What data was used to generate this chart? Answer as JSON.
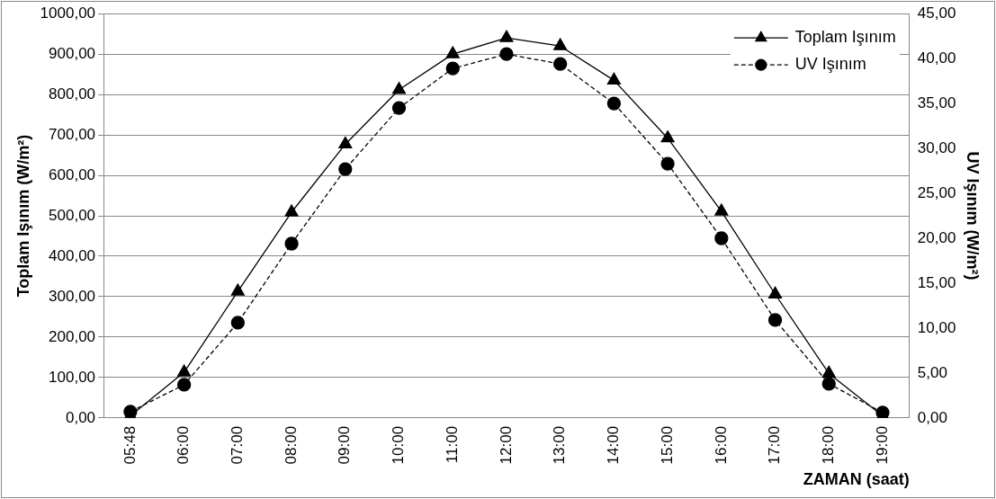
{
  "chart_data": {
    "type": "line",
    "xlabel": "ZAMAN (saat)",
    "ylabel": "Toplam Işınım (W/m²)",
    "y2label": "UV Işınım (W/m²)",
    "categories": [
      "05:48",
      "06:00",
      "07:00",
      "08:00",
      "09:00",
      "10:00",
      "11:00",
      "12:00",
      "13:00",
      "14:00",
      "15:00",
      "16:00",
      "17:00",
      "18:00",
      "19:00"
    ],
    "series": [
      {
        "name": "Toplam Işınım",
        "color": "#000000",
        "marker": "triangle",
        "line_style": "solid",
        "values": [
          5,
          113,
          313,
          509,
          677,
          812,
          900,
          940,
          920,
          835,
          692,
          511,
          306,
          110,
          5
        ]
      },
      {
        "name": "UV Işınım",
        "color": "#000000",
        "marker": "circle",
        "line_style": "dashed",
        "axis": "y2",
        "values": [
          0.7,
          3.7,
          10.6,
          19.4,
          27.7,
          34.5,
          38.9,
          40.5,
          39.4,
          35.0,
          28.3,
          20.0,
          10.9,
          3.8,
          0.6
        ]
      }
    ],
    "ylim": [
      0,
      1000
    ],
    "yticks": [
      {
        "value": 0,
        "label": "0,00"
      },
      {
        "value": 100,
        "label": "100,00"
      },
      {
        "value": 200,
        "label": "200,00"
      },
      {
        "value": 300,
        "label": "300,00"
      },
      {
        "value": 400,
        "label": "400,00"
      },
      {
        "value": 500,
        "label": "500,00"
      },
      {
        "value": 600,
        "label": "600,00"
      },
      {
        "value": 700,
        "label": "700,00"
      },
      {
        "value": 800,
        "label": "800,00"
      },
      {
        "value": 900,
        "label": "900,00"
      },
      {
        "value": 1000,
        "label": "1000,00"
      }
    ],
    "y2lim": [
      0,
      45
    ],
    "y2ticks": [
      {
        "value": 0,
        "label": "0,00"
      },
      {
        "value": 5,
        "label": "5,00"
      },
      {
        "value": 10,
        "label": "10,00"
      },
      {
        "value": 15,
        "label": "15,00"
      },
      {
        "value": 20,
        "label": "20,00"
      },
      {
        "value": 25,
        "label": "25,00"
      },
      {
        "value": 30,
        "label": "30,00"
      },
      {
        "value": 35,
        "label": "35,00"
      },
      {
        "value": 40,
        "label": "40,00"
      },
      {
        "value": 45,
        "label": "45,00"
      }
    ],
    "grid": "y",
    "legend": "top right"
  }
}
